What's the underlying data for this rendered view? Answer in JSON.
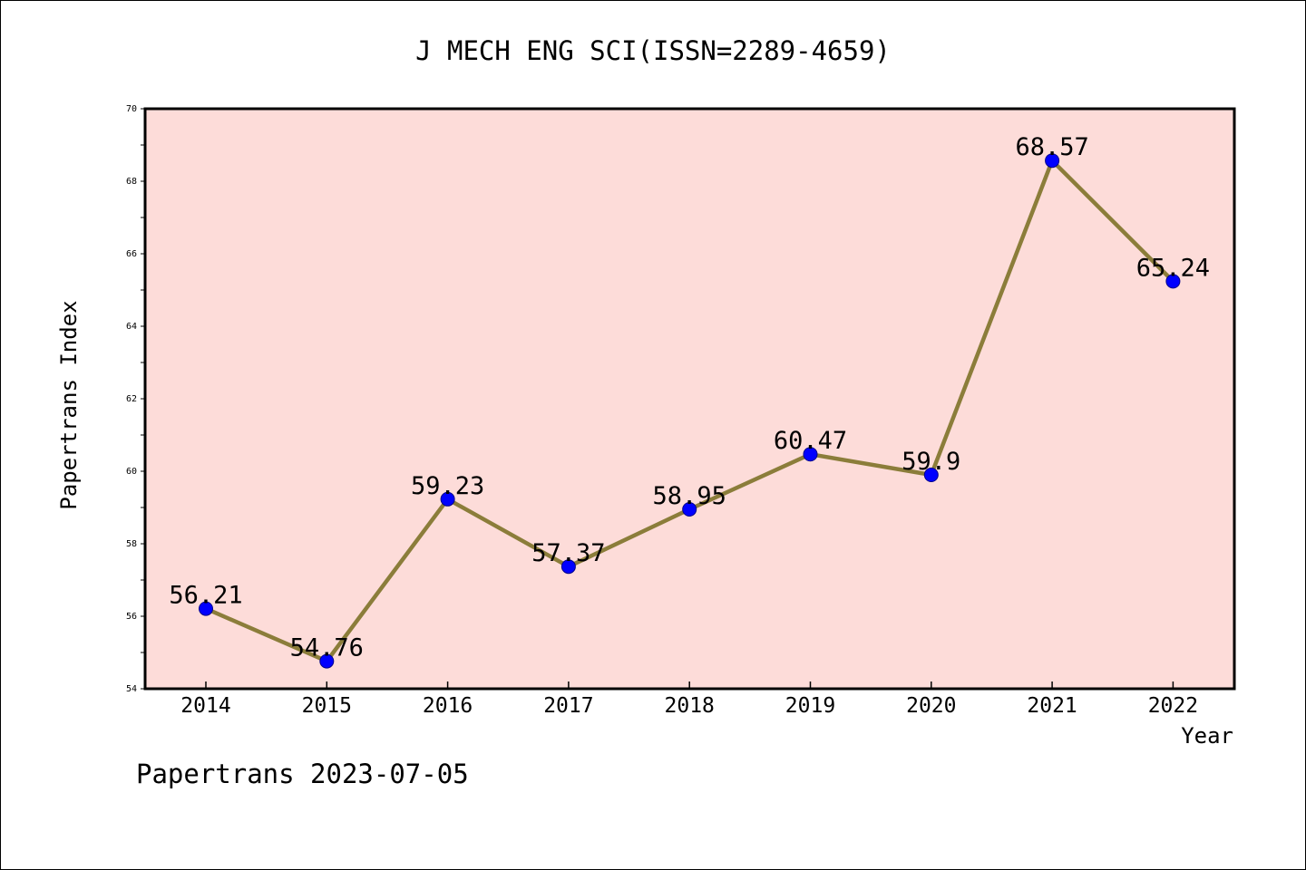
{
  "chart_data": {
    "type": "line",
    "title": "J MECH ENG SCI(ISSN=2289-4659)",
    "xlabel": "Year",
    "ylabel": "Papertrans Index",
    "footer": "Papertrans 2023-07-05",
    "ylim": [
      54,
      70
    ],
    "y_ticks": [
      "54",
      "56",
      "58",
      "60",
      "62",
      "64",
      "66",
      "68",
      "70"
    ],
    "x": [
      "2014",
      "2015",
      "2016",
      "2017",
      "2018",
      "2019",
      "2020",
      "2021",
      "2022"
    ],
    "series": [
      {
        "values": [
          56.21,
          54.76,
          59.23,
          57.37,
          58.95,
          60.47,
          59.9,
          68.57,
          65.24
        ],
        "labels": [
          "56.21",
          "54.76",
          "59.23",
          "57.37",
          "58.95",
          "60.47",
          "59.9",
          "68.57",
          "65.24"
        ]
      }
    ],
    "grid": false,
    "legend": "none",
    "colors": {
      "plot_background": "#fddcd9",
      "line": "#8b7d3a",
      "marker": "#0000ff"
    }
  }
}
